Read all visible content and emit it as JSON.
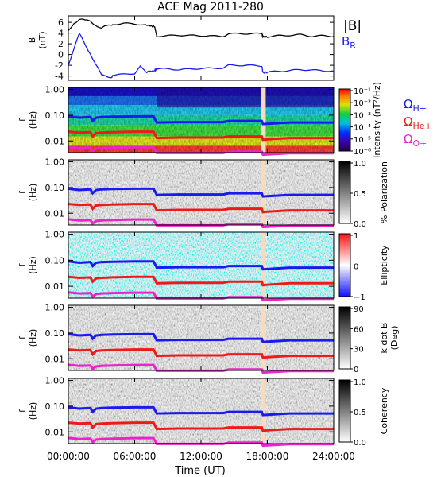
{
  "title": "ACE Mag 2011-280",
  "xlabel": "Time (UT)",
  "time_ticks": [
    "00:00:00",
    "06:00:00",
    "12:00:00",
    "18:00:00",
    "24:00:00"
  ],
  "freq_ticks": [
    "1.00",
    "0.10",
    "0.01"
  ],
  "gyro_legend": [
    {
      "label": "Ω",
      "sub": "H+",
      "color": "#1a1aee"
    },
    {
      "label": "Ω",
      "sub": "He+",
      "color": "#ee1a1a"
    },
    {
      "label": "Ω",
      "sub": "O+",
      "color": "#ee22cc"
    }
  ],
  "colors": {
    "B_total": "#000000",
    "B_R": "#1a1aee",
    "H": "#1a1aee",
    "He": "#ee1a1a",
    "O": "#ee22cc",
    "gap": "#f5dcc0"
  },
  "chart_data": [
    {
      "type": "line",
      "panel": "magnetic-field",
      "ylabel": "B",
      "yunit": "(nT)",
      "yticks": [
        6,
        4,
        2,
        0,
        -2,
        -4
      ],
      "ylim": [
        -4.8,
        7.2
      ],
      "xlim": [
        0,
        24
      ],
      "series": [
        {
          "name": "|B|",
          "x": [
            0,
            0.5,
            1,
            1.5,
            2,
            2.5,
            3,
            3.5,
            4,
            5,
            6,
            7,
            7.8,
            8,
            10,
            12,
            14,
            14.5,
            16,
            17.5,
            17.6,
            18,
            19,
            20,
            21,
            22,
            23,
            24
          ],
          "y": [
            4.5,
            6.2,
            6.5,
            6.0,
            6.3,
            5.8,
            4.8,
            5.0,
            5.6,
            5.8,
            5.7,
            5.5,
            5.2,
            3.4,
            3.6,
            3.5,
            3.4,
            3.9,
            3.9,
            3.9,
            3.3,
            3.3,
            3.5,
            3.6,
            3.7,
            3.4,
            3.5,
            3.4
          ]
        },
        {
          "name": "B",
          "sub": "R",
          "x": [
            0,
            0.5,
            1,
            1.5,
            2,
            2.5,
            3,
            3.5,
            4,
            5,
            6,
            6.5,
            7,
            7.8,
            8,
            10,
            12,
            14,
            14.5,
            16,
            17.5,
            17.6,
            18,
            19,
            20,
            21,
            22,
            23,
            24
          ],
          "y": [
            -1.5,
            1.0,
            3.5,
            2.0,
            0.5,
            -2.0,
            -4.2,
            -4.0,
            -3.8,
            -3.7,
            -3.5,
            -2.2,
            -3.3,
            -3.0,
            -2.6,
            -2.8,
            -2.6,
            -2.5,
            -2.0,
            -2.0,
            -2.1,
            -3.4,
            -3.3,
            -3.1,
            -3.0,
            -2.8,
            -2.9,
            -3.0,
            -3.1
          ]
        }
      ]
    },
    {
      "type": "heatmap",
      "panel": "power-spectral-density",
      "ylabel": "f",
      "yunit": "(Hz)",
      "colorbar_label": "Intensity (nT²/Hz)",
      "colorbar_ticks": [
        "10⁻¹",
        "10⁻²",
        "10⁻³",
        "10⁻⁴",
        "10⁻⁵",
        "10⁻⁶"
      ]
    },
    {
      "type": "heatmap",
      "panel": "polarization",
      "ylabel": "f",
      "yunit": "(Hz)",
      "colorbar_label": "% Polarization",
      "colorbar_ticks": [
        "1.0",
        "0.5",
        "0.0"
      ]
    },
    {
      "type": "heatmap",
      "panel": "ellipticity",
      "ylabel": "f",
      "yunit": "(Hz)",
      "colorbar_label": "Ellipticity",
      "colorbar_ticks": [
        "1",
        "0",
        "−1"
      ]
    },
    {
      "type": "heatmap",
      "panel": "wave-normal-angle",
      "ylabel": "f",
      "yunit": "(Hz)",
      "colorbar_label": "k dot B",
      "colorbar_label2": "(Deg)",
      "colorbar_ticks": [
        "90",
        "60",
        "30",
        "0"
      ]
    },
    {
      "type": "heatmap",
      "panel": "coherency",
      "ylabel": "f",
      "yunit": "(Hz)",
      "colorbar_label": "Coherency",
      "colorbar_ticks": [
        "1.0",
        "0.5",
        "0.0"
      ]
    }
  ],
  "gyrofrequency_lines": {
    "x": [
      0,
      1,
      2,
      2.2,
      2.5,
      3,
      4,
      6,
      7.7,
      8,
      10,
      12,
      14,
      14.5,
      17.5,
      17.6,
      18,
      20,
      22,
      24
    ],
    "H+": [
      0.09,
      0.08,
      0.085,
      0.06,
      0.08,
      0.085,
      0.088,
      0.09,
      0.09,
      0.052,
      0.054,
      0.054,
      0.054,
      0.06,
      0.06,
      0.045,
      0.046,
      0.052,
      0.052,
      0.052
    ],
    "He+": [
      0.023,
      0.021,
      0.022,
      0.015,
      0.02,
      0.021,
      0.022,
      0.023,
      0.023,
      0.013,
      0.0135,
      0.0135,
      0.0135,
      0.015,
      0.015,
      0.011,
      0.0115,
      0.013,
      0.013,
      0.013
    ],
    "O+": [
      0.0058,
      0.0053,
      0.0055,
      0.004,
      0.005,
      0.0053,
      0.0055,
      0.0057,
      0.0057,
      0.0034,
      0.0034,
      0.0034,
      0.0034,
      0.0038,
      0.0038,
      0.0029,
      0.003,
      0.0033,
      0.0033,
      0.0033
    ]
  },
  "data_gap_hours": [
    17.45,
    17.85
  ]
}
